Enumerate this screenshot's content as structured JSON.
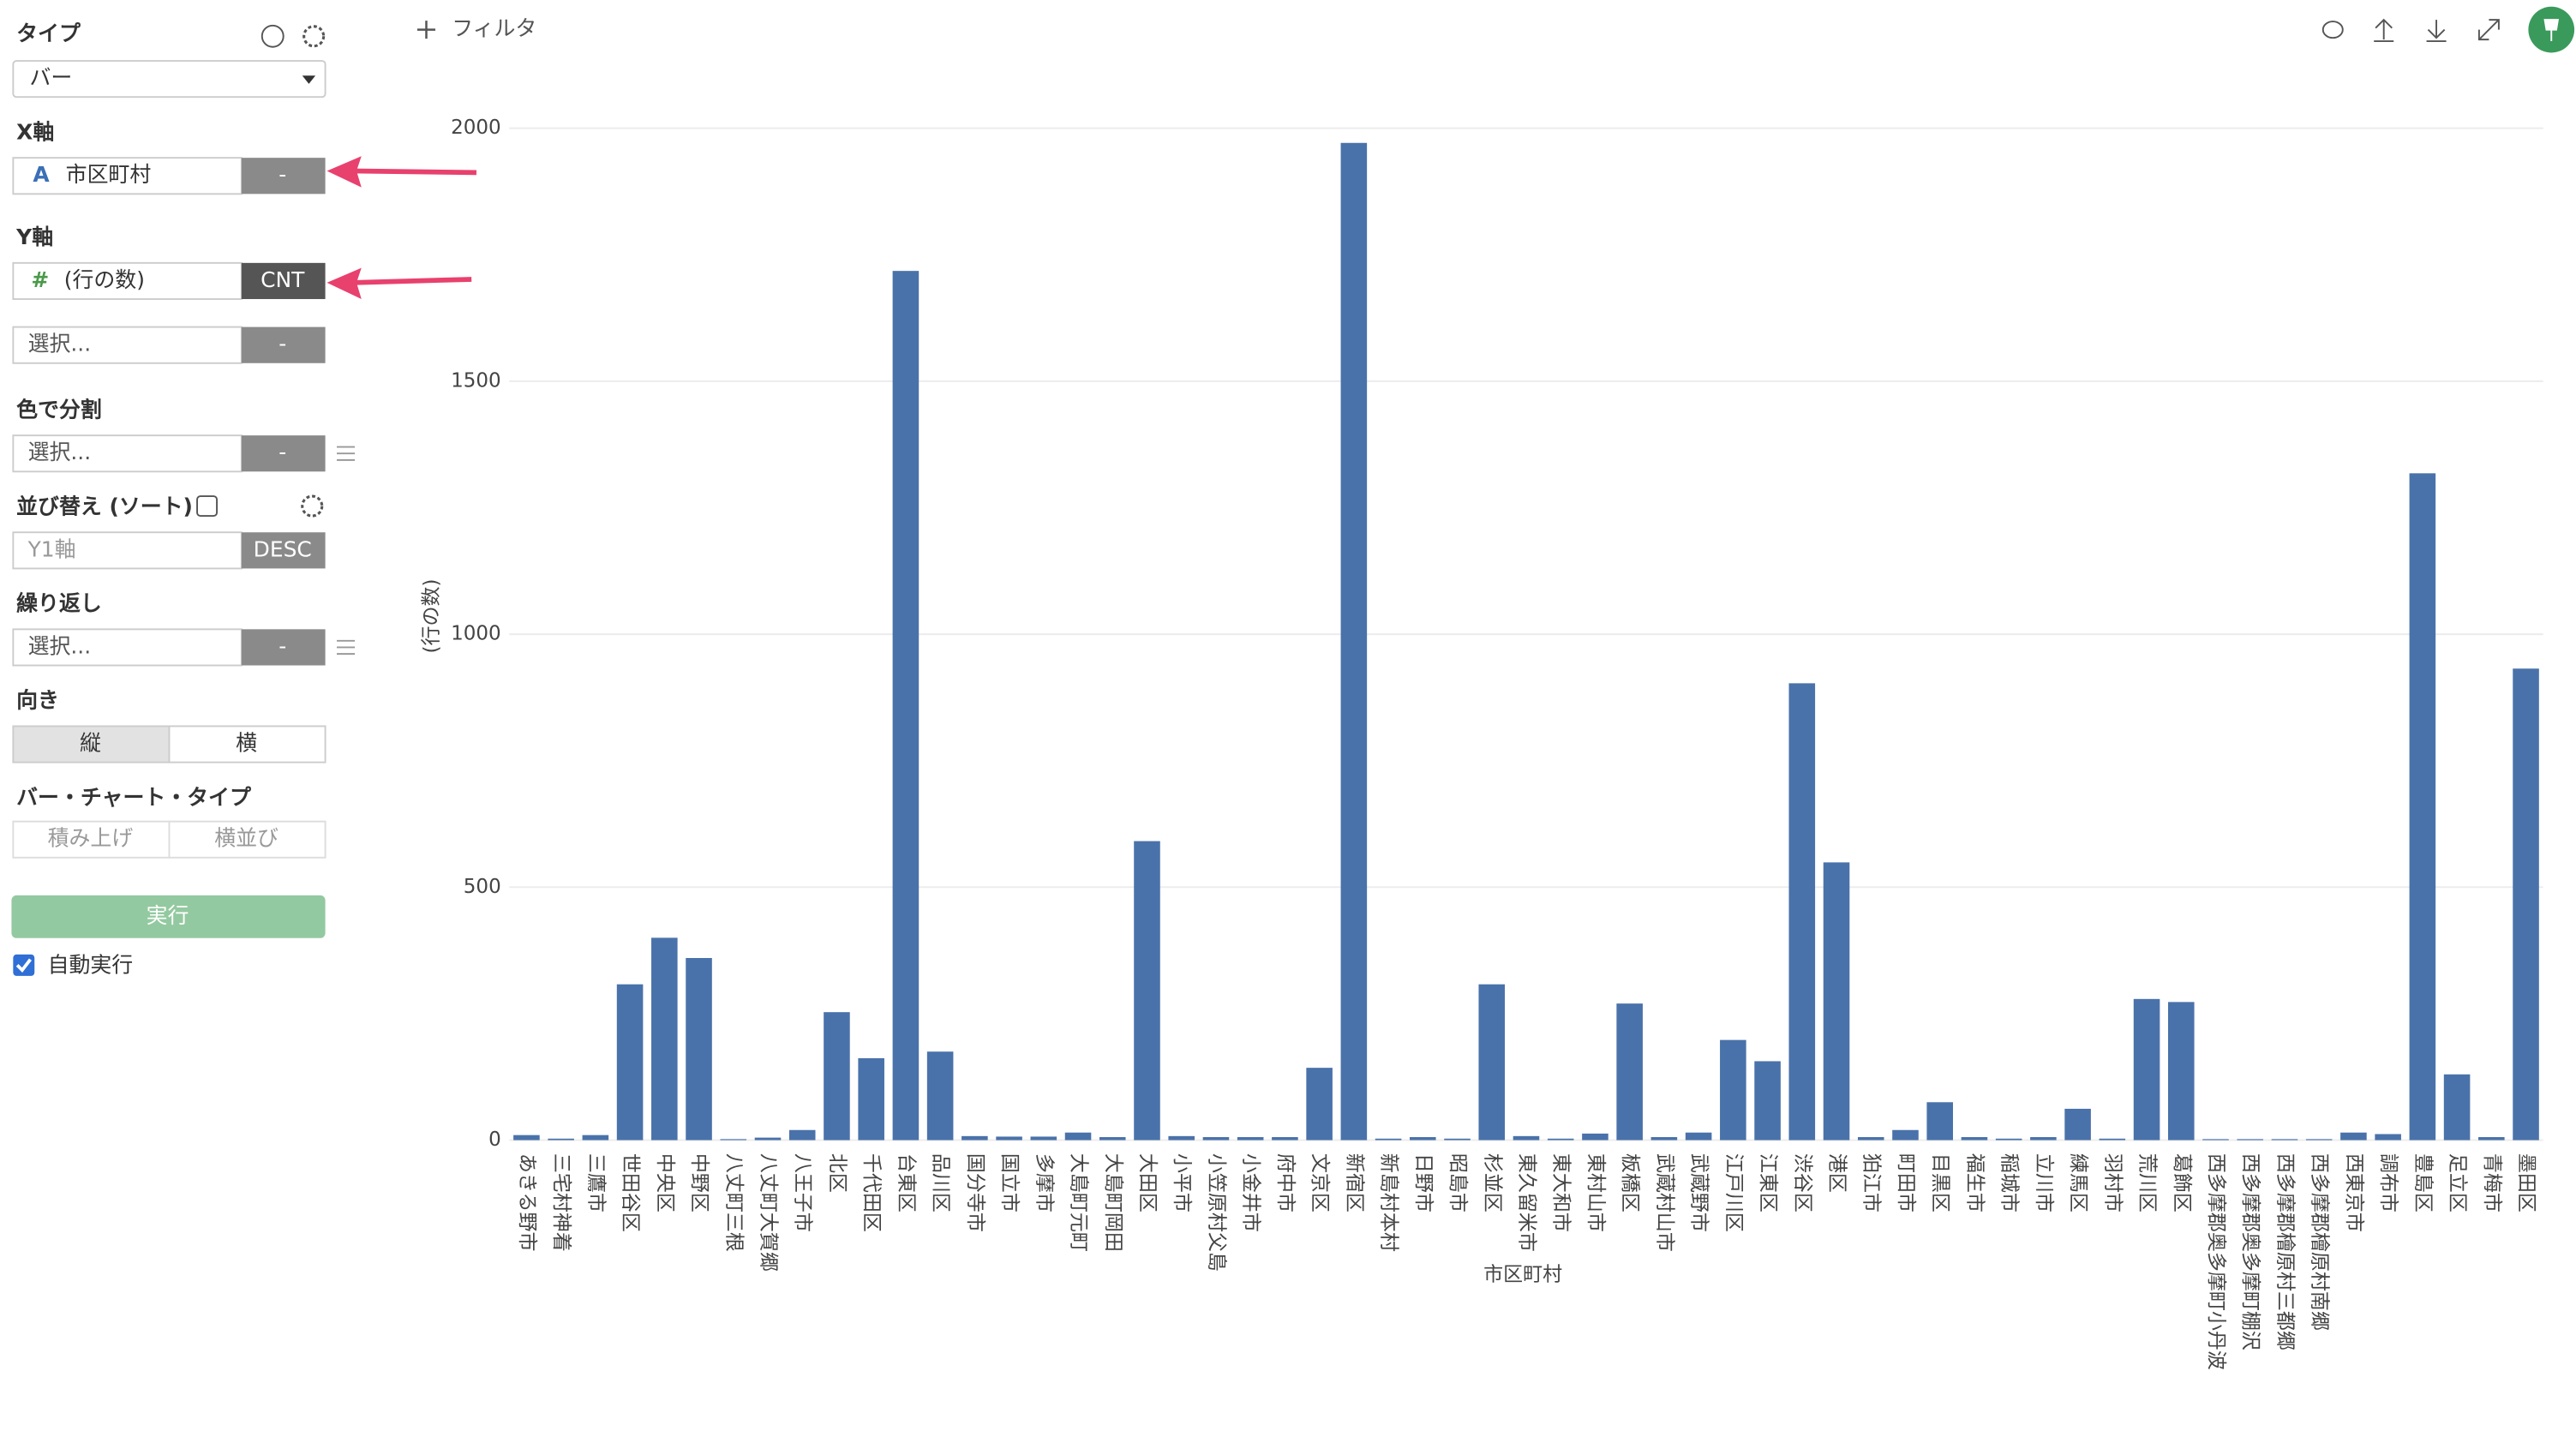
{
  "sidebar": {
    "type_label": "タイプ",
    "type_value": "バー",
    "x_axis_label": "X軸",
    "x_axis_icon": "A",
    "x_axis_field": "市区町村",
    "x_axis_agg": "-",
    "y_axis_label": "Y軸",
    "y_axis_icon": "#",
    "y_axis_field": "(行の数)",
    "y_axis_agg": "CNT",
    "y2_placeholder": "選択...",
    "y2_agg": "-",
    "color_label": "色で分割",
    "color_placeholder": "選択...",
    "color_agg": "-",
    "sort_label": "並び替え (ソート)",
    "sort_field": "Y1軸",
    "sort_order": "DESC",
    "repeat_label": "繰り返し",
    "repeat_placeholder": "選択...",
    "repeat_agg": "-",
    "orientation_label": "向き",
    "orientation_options": [
      "縦",
      "横"
    ],
    "bar_type_label": "バー・チャート・タイプ",
    "bar_type_options": [
      "積み上げ",
      "横並び"
    ],
    "run_button": "実行",
    "auto_run": "自動実行"
  },
  "toolbar": {
    "filter": "フィルタ"
  },
  "chart_data": {
    "type": "bar",
    "x_label": "市区町村",
    "y_label": "(行の数)",
    "categories": [
      "あきる野市",
      "三宅村神着",
      "三鷹市",
      "世田谷区",
      "中央区",
      "中野区",
      "八丈町三根",
      "八丈町大賀郷",
      "八王子市",
      "北区",
      "千代田区",
      "台東区",
      "品川区",
      "国分寺市",
      "国立市",
      "多摩市",
      "大島町元町",
      "大島町岡田",
      "大田区",
      "小平市",
      "小笠原村父島",
      "小金井市",
      "府中市",
      "文京区",
      "新宿区",
      "新島村本村",
      "日野市",
      "昭島市",
      "杉並区",
      "東久留米市",
      "東大和市",
      "東村山市",
      "板橋区",
      "武蔵村山市",
      "武蔵野市",
      "江戸川区",
      "江東区",
      "渋谷区",
      "港区",
      "狛江市",
      "町田市",
      "目黒区",
      "福生市",
      "稲城市",
      "立川市",
      "練馬区",
      "羽村市",
      "荒川区",
      "葛飾区",
      "西多摩郡奥多摩町小丹波",
      "西多摩郡奥多摩町棚沢",
      "西多摩郡檜原村三都郷",
      "西多摩郡檜原村南郷",
      "西東京市",
      "調布市",
      "豊島区",
      "足立区",
      "青梅市",
      "墨田区"
    ],
    "values": [
      10,
      3,
      10,
      308,
      400,
      360,
      2,
      5,
      20,
      253,
      162,
      1718,
      175,
      8,
      7,
      7,
      15,
      6,
      591,
      8,
      6,
      6,
      6,
      143,
      1971,
      3,
      6,
      3,
      308,
      8,
      3,
      13,
      270,
      6,
      15,
      198,
      156,
      903,
      549,
      6,
      20,
      75,
      6,
      3,
      6,
      62,
      3,
      279,
      273,
      2,
      2,
      2,
      2,
      15,
      12,
      1318,
      130,
      6,
      932
    ],
    "color": "#4a72aa",
    "ylim": [
      0,
      2000
    ],
    "yticks": [
      0,
      500,
      1000,
      1500,
      2000
    ],
    "grid": true
  }
}
